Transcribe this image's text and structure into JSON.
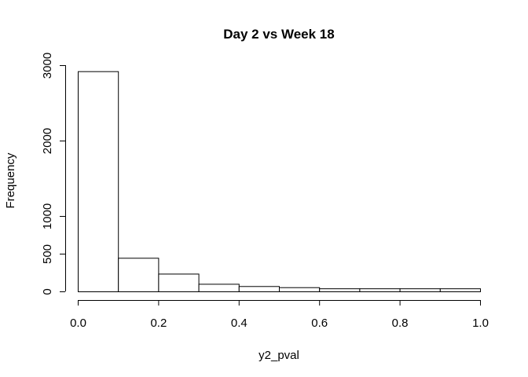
{
  "chart_data": {
    "type": "bar",
    "title": "Day 2 vs Week 18",
    "xlabel": "y2_pval",
    "ylabel": "Frequency",
    "bins": [
      {
        "x0": 0.0,
        "x1": 0.1,
        "count": 2920
      },
      {
        "x0": 0.1,
        "x1": 0.2,
        "count": 445
      },
      {
        "x0": 0.2,
        "x1": 0.3,
        "count": 235
      },
      {
        "x0": 0.3,
        "x1": 0.4,
        "count": 100
      },
      {
        "x0": 0.4,
        "x1": 0.5,
        "count": 70
      },
      {
        "x0": 0.5,
        "x1": 0.6,
        "count": 55
      },
      {
        "x0": 0.6,
        "x1": 0.7,
        "count": 40
      },
      {
        "x0": 0.7,
        "x1": 0.8,
        "count": 40
      },
      {
        "x0": 0.8,
        "x1": 0.9,
        "count": 40
      },
      {
        "x0": 0.9,
        "x1": 1.0,
        "count": 40
      }
    ],
    "xlim": [
      0.0,
      1.0
    ],
    "ylim": [
      0,
      3000
    ],
    "x_ticks": [
      0.0,
      0.2,
      0.4,
      0.6,
      0.8,
      1.0
    ],
    "x_tick_labels": [
      "0.0",
      "0.2",
      "0.4",
      "0.6",
      "0.8",
      "1.0"
    ],
    "y_ticks": [
      0,
      500,
      1000,
      2000,
      3000
    ],
    "y_tick_labels": [
      "0",
      "500",
      "1000",
      "2000",
      "3000"
    ],
    "grid": false,
    "bar_fill": "#ffffff",
    "bar_stroke": "#000000"
  }
}
